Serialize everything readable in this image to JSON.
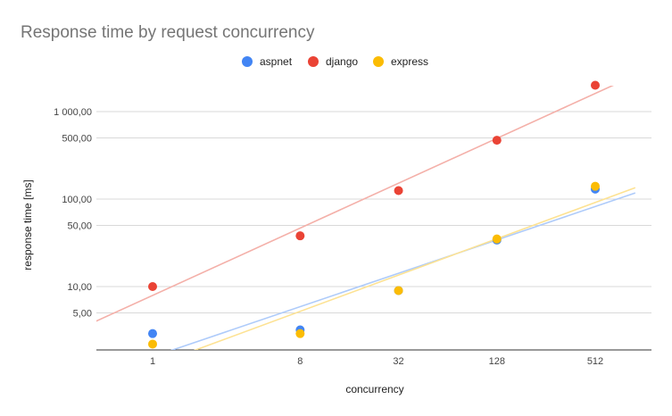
{
  "chart_data": {
    "type": "scatter",
    "title": "Response time by request concurrency",
    "xlabel": "concurrency",
    "ylabel": "response time [ms]",
    "x_scale": "log2",
    "y_scale": "log10",
    "categories": [
      "1",
      "8",
      "32",
      "128",
      "512"
    ],
    "x": [
      1,
      8,
      32,
      128,
      512
    ],
    "y_ticks": [
      5,
      10,
      50,
      100,
      500,
      1000
    ],
    "y_tick_labels": [
      "5,00",
      "10,00",
      "50,00",
      "100,00",
      "500,00",
      "1 000,00"
    ],
    "ylim": [
      2.2,
      2400
    ],
    "xlim": [
      0.4,
      900
    ],
    "grid": true,
    "legend": "top",
    "trendlines": true,
    "series": [
      {
        "name": "aspnet",
        "color": "#4285f4",
        "trend_color": "#aecbfa",
        "values": [
          2.9,
          3.2,
          9,
          34,
          130
        ]
      },
      {
        "name": "django",
        "color": "#ea4335",
        "trend_color": "#f4b0a9",
        "values": [
          10,
          38,
          125,
          470,
          2000
        ]
      },
      {
        "name": "express",
        "color": "#fbbc04",
        "trend_color": "#fde293",
        "values": [
          2.2,
          2.9,
          9,
          35,
          140
        ]
      }
    ]
  }
}
